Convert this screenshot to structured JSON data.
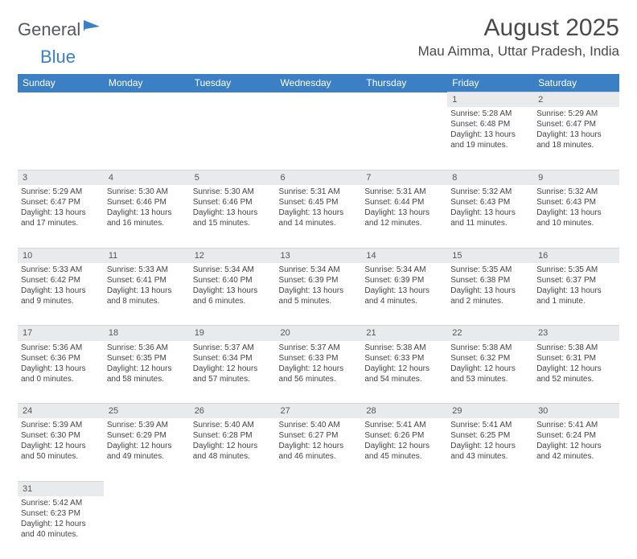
{
  "logo": {
    "text1": "General",
    "text2": "Blue",
    "icon_color": "#3b7fc4"
  },
  "title": {
    "month": "August 2025",
    "location": "Mau Aimma, Uttar Pradesh, India"
  },
  "header_bg": "#3b7fc4",
  "header_fg": "#ffffff",
  "daynum_bg": "#e9eaec",
  "text_color": "#444444",
  "columns": [
    "Sunday",
    "Monday",
    "Tuesday",
    "Wednesday",
    "Thursday",
    "Friday",
    "Saturday"
  ],
  "weeks": [
    {
      "nums": [
        "",
        "",
        "",
        "",
        "",
        "1",
        "2"
      ],
      "cells": [
        [],
        [],
        [],
        [],
        [],
        [
          "Sunrise: 5:28 AM",
          "Sunset: 6:48 PM",
          "Daylight: 13 hours",
          "and 19 minutes."
        ],
        [
          "Sunrise: 5:29 AM",
          "Sunset: 6:47 PM",
          "Daylight: 13 hours",
          "and 18 minutes."
        ]
      ]
    },
    {
      "nums": [
        "3",
        "4",
        "5",
        "6",
        "7",
        "8",
        "9"
      ],
      "cells": [
        [
          "Sunrise: 5:29 AM",
          "Sunset: 6:47 PM",
          "Daylight: 13 hours",
          "and 17 minutes."
        ],
        [
          "Sunrise: 5:30 AM",
          "Sunset: 6:46 PM",
          "Daylight: 13 hours",
          "and 16 minutes."
        ],
        [
          "Sunrise: 5:30 AM",
          "Sunset: 6:46 PM",
          "Daylight: 13 hours",
          "and 15 minutes."
        ],
        [
          "Sunrise: 5:31 AM",
          "Sunset: 6:45 PM",
          "Daylight: 13 hours",
          "and 14 minutes."
        ],
        [
          "Sunrise: 5:31 AM",
          "Sunset: 6:44 PM",
          "Daylight: 13 hours",
          "and 12 minutes."
        ],
        [
          "Sunrise: 5:32 AM",
          "Sunset: 6:43 PM",
          "Daylight: 13 hours",
          "and 11 minutes."
        ],
        [
          "Sunrise: 5:32 AM",
          "Sunset: 6:43 PM",
          "Daylight: 13 hours",
          "and 10 minutes."
        ]
      ]
    },
    {
      "nums": [
        "10",
        "11",
        "12",
        "13",
        "14",
        "15",
        "16"
      ],
      "cells": [
        [
          "Sunrise: 5:33 AM",
          "Sunset: 6:42 PM",
          "Daylight: 13 hours",
          "and 9 minutes."
        ],
        [
          "Sunrise: 5:33 AM",
          "Sunset: 6:41 PM",
          "Daylight: 13 hours",
          "and 8 minutes."
        ],
        [
          "Sunrise: 5:34 AM",
          "Sunset: 6:40 PM",
          "Daylight: 13 hours",
          "and 6 minutes."
        ],
        [
          "Sunrise: 5:34 AM",
          "Sunset: 6:39 PM",
          "Daylight: 13 hours",
          "and 5 minutes."
        ],
        [
          "Sunrise: 5:34 AM",
          "Sunset: 6:39 PM",
          "Daylight: 13 hours",
          "and 4 minutes."
        ],
        [
          "Sunrise: 5:35 AM",
          "Sunset: 6:38 PM",
          "Daylight: 13 hours",
          "and 2 minutes."
        ],
        [
          "Sunrise: 5:35 AM",
          "Sunset: 6:37 PM",
          "Daylight: 13 hours",
          "and 1 minute."
        ]
      ]
    },
    {
      "nums": [
        "17",
        "18",
        "19",
        "20",
        "21",
        "22",
        "23"
      ],
      "cells": [
        [
          "Sunrise: 5:36 AM",
          "Sunset: 6:36 PM",
          "Daylight: 13 hours",
          "and 0 minutes."
        ],
        [
          "Sunrise: 5:36 AM",
          "Sunset: 6:35 PM",
          "Daylight: 12 hours",
          "and 58 minutes."
        ],
        [
          "Sunrise: 5:37 AM",
          "Sunset: 6:34 PM",
          "Daylight: 12 hours",
          "and 57 minutes."
        ],
        [
          "Sunrise: 5:37 AM",
          "Sunset: 6:33 PM",
          "Daylight: 12 hours",
          "and 56 minutes."
        ],
        [
          "Sunrise: 5:38 AM",
          "Sunset: 6:33 PM",
          "Daylight: 12 hours",
          "and 54 minutes."
        ],
        [
          "Sunrise: 5:38 AM",
          "Sunset: 6:32 PM",
          "Daylight: 12 hours",
          "and 53 minutes."
        ],
        [
          "Sunrise: 5:38 AM",
          "Sunset: 6:31 PM",
          "Daylight: 12 hours",
          "and 52 minutes."
        ]
      ]
    },
    {
      "nums": [
        "24",
        "25",
        "26",
        "27",
        "28",
        "29",
        "30"
      ],
      "cells": [
        [
          "Sunrise: 5:39 AM",
          "Sunset: 6:30 PM",
          "Daylight: 12 hours",
          "and 50 minutes."
        ],
        [
          "Sunrise: 5:39 AM",
          "Sunset: 6:29 PM",
          "Daylight: 12 hours",
          "and 49 minutes."
        ],
        [
          "Sunrise: 5:40 AM",
          "Sunset: 6:28 PM",
          "Daylight: 12 hours",
          "and 48 minutes."
        ],
        [
          "Sunrise: 5:40 AM",
          "Sunset: 6:27 PM",
          "Daylight: 12 hours",
          "and 46 minutes."
        ],
        [
          "Sunrise: 5:41 AM",
          "Sunset: 6:26 PM",
          "Daylight: 12 hours",
          "and 45 minutes."
        ],
        [
          "Sunrise: 5:41 AM",
          "Sunset: 6:25 PM",
          "Daylight: 12 hours",
          "and 43 minutes."
        ],
        [
          "Sunrise: 5:41 AM",
          "Sunset: 6:24 PM",
          "Daylight: 12 hours",
          "and 42 minutes."
        ]
      ]
    },
    {
      "nums": [
        "31",
        "",
        "",
        "",
        "",
        "",
        ""
      ],
      "cells": [
        [
          "Sunrise: 5:42 AM",
          "Sunset: 6:23 PM",
          "Daylight: 12 hours",
          "and 40 minutes."
        ],
        [],
        [],
        [],
        [],
        [],
        []
      ]
    }
  ]
}
